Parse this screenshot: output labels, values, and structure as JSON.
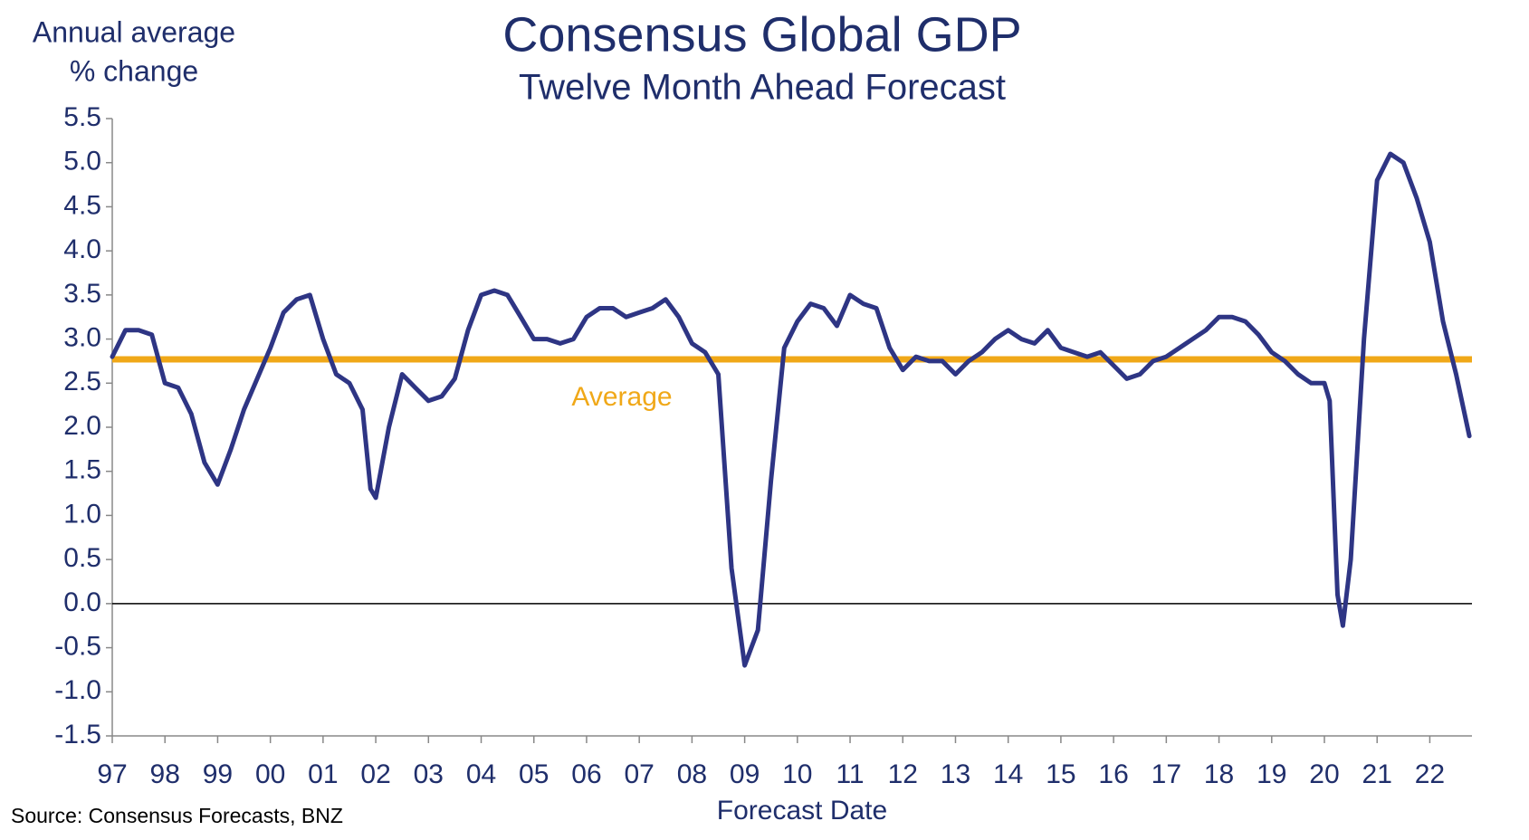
{
  "chart_data": {
    "type": "line",
    "title": "Consensus Global GDP",
    "subtitle": "Twelve Month Ahead Forecast",
    "y_label": [
      "Annual average",
      "% change"
    ],
    "x_label": "Forecast Date",
    "source": "Source: Consensus Forecasts, BNZ",
    "x": [
      1997.0,
      1997.25,
      1997.5,
      1997.75,
      1998.0,
      1998.25,
      1998.5,
      1998.75,
      1999.0,
      1999.25,
      1999.5,
      1999.75,
      2000.0,
      2000.25,
      2000.5,
      2000.75,
      2001.0,
      2001.25,
      2001.5,
      2001.75,
      2001.9,
      2002.0,
      2002.25,
      2002.5,
      2002.75,
      2003.0,
      2003.25,
      2003.5,
      2003.75,
      2004.0,
      2004.25,
      2004.5,
      2004.75,
      2005.0,
      2005.25,
      2005.5,
      2005.75,
      2006.0,
      2006.25,
      2006.5,
      2006.75,
      2007.0,
      2007.25,
      2007.5,
      2007.75,
      2008.0,
      2008.25,
      2008.5,
      2008.75,
      2009.0,
      2009.25,
      2009.5,
      2009.75,
      2010.0,
      2010.25,
      2010.5,
      2010.75,
      2011.0,
      2011.25,
      2011.5,
      2011.75,
      2012.0,
      2012.25,
      2012.5,
      2012.75,
      2013.0,
      2013.25,
      2013.5,
      2013.75,
      2014.0,
      2014.25,
      2014.5,
      2014.75,
      2015.0,
      2015.25,
      2015.5,
      2015.75,
      2016.0,
      2016.25,
      2016.5,
      2016.75,
      2017.0,
      2017.25,
      2017.5,
      2017.75,
      2018.0,
      2018.25,
      2018.5,
      2018.75,
      2019.0,
      2019.25,
      2019.5,
      2019.75,
      2020.0,
      2020.1,
      2020.25,
      2020.35,
      2020.5,
      2020.75,
      2021.0,
      2021.25,
      2021.5,
      2021.75,
      2022.0,
      2022.25,
      2022.5,
      2022.75
    ],
    "series": [
      {
        "name": "Consensus Global GDP",
        "color": "#2e3584",
        "values": [
          2.8,
          3.1,
          3.1,
          3.05,
          2.5,
          2.45,
          2.15,
          1.6,
          1.35,
          1.75,
          2.2,
          2.55,
          2.9,
          3.3,
          3.45,
          3.5,
          3.0,
          2.6,
          2.5,
          2.2,
          1.3,
          1.2,
          2.0,
          2.6,
          2.45,
          2.3,
          2.35,
          2.55,
          3.1,
          3.5,
          3.55,
          3.5,
          3.25,
          3.0,
          3.0,
          2.95,
          3.0,
          3.25,
          3.35,
          3.35,
          3.25,
          3.3,
          3.35,
          3.45,
          3.25,
          2.95,
          2.85,
          2.6,
          0.4,
          -0.7,
          -0.3,
          1.4,
          2.9,
          3.2,
          3.4,
          3.35,
          3.15,
          3.5,
          3.4,
          3.35,
          2.9,
          2.65,
          2.8,
          2.75,
          2.75,
          2.6,
          2.75,
          2.85,
          3.0,
          3.1,
          3.0,
          2.95,
          3.1,
          2.9,
          2.85,
          2.8,
          2.85,
          2.7,
          2.55,
          2.6,
          2.75,
          2.8,
          2.9,
          3.0,
          3.1,
          3.25,
          3.25,
          3.2,
          3.05,
          2.85,
          2.75,
          2.6,
          2.5,
          2.5,
          2.3,
          0.1,
          -0.25,
          0.5,
          3.0,
          4.8,
          5.1,
          5.0,
          4.6,
          4.1,
          3.2,
          2.6,
          1.9
        ]
      }
    ],
    "average": {
      "label": "Average",
      "value": 2.77,
      "color": "#f0a818"
    },
    "xlim": [
      1997,
      2022.8
    ],
    "xticks": [
      {
        "value": 1997,
        "label": "97"
      },
      {
        "value": 1998,
        "label": "98"
      },
      {
        "value": 1999,
        "label": "99"
      },
      {
        "value": 2000,
        "label": "00"
      },
      {
        "value": 2001,
        "label": "01"
      },
      {
        "value": 2002,
        "label": "02"
      },
      {
        "value": 2003,
        "label": "03"
      },
      {
        "value": 2004,
        "label": "04"
      },
      {
        "value": 2005,
        "label": "05"
      },
      {
        "value": 2006,
        "label": "06"
      },
      {
        "value": 2007,
        "label": "07"
      },
      {
        "value": 2008,
        "label": "08"
      },
      {
        "value": 2009,
        "label": "09"
      },
      {
        "value": 2010,
        "label": "10"
      },
      {
        "value": 2011,
        "label": "11"
      },
      {
        "value": 2012,
        "label": "12"
      },
      {
        "value": 2013,
        "label": "13"
      },
      {
        "value": 2014,
        "label": "14"
      },
      {
        "value": 2015,
        "label": "15"
      },
      {
        "value": 2016,
        "label": "16"
      },
      {
        "value": 2017,
        "label": "17"
      },
      {
        "value": 2018,
        "label": "18"
      },
      {
        "value": 2019,
        "label": "19"
      },
      {
        "value": 2020,
        "label": "20"
      },
      {
        "value": 2021,
        "label": "21"
      },
      {
        "value": 2022,
        "label": "22"
      }
    ],
    "ylim": [
      -1.5,
      5.5
    ],
    "yticks": [
      5.5,
      {
        "value": 5,
        "label": "5.0"
      },
      4.5,
      {
        "value": 4,
        "label": "4.0"
      },
      3.5,
      {
        "value": 3,
        "label": "3.0"
      },
      2.5,
      {
        "value": 2,
        "label": "2.0"
      },
      1.5,
      {
        "value": 1,
        "label": "1.0"
      },
      0.5,
      {
        "value": 0,
        "label": "0.0"
      },
      -0.5,
      {
        "value": -1,
        "label": "-1.0"
      },
      -1.5
    ],
    "zero_line": true
  }
}
